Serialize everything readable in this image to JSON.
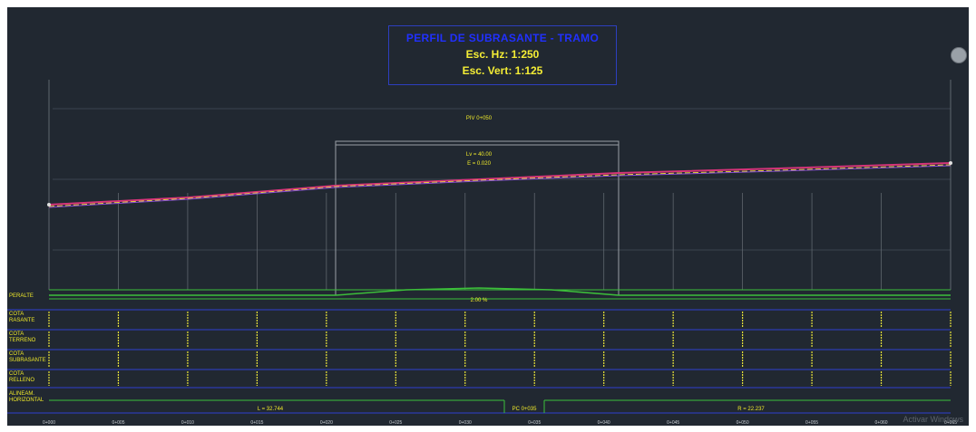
{
  "window": {
    "title_main": "PERFIL DE SUBRASANTE - TRAMO",
    "scale_horizontal": "Esc. Hz: 1:250",
    "scale_vertical": "Esc. Vert: 1:125"
  },
  "band_labels": {
    "peralte": "PERALTE",
    "cota_rasante": "COTA RASANTE",
    "cota_terreno": "COTA TERRENO",
    "cota_subrasante": "COTA SUBRASANTE",
    "cota_relleno": "COTA RELLENO",
    "alineamiento": "ALINEAM. HORIZONTAL"
  },
  "profile_annotations": {
    "pi_center": "PIV 0+050",
    "curve_text_1": "Lv = 40.00",
    "curve_text_2": "E = 0.020"
  },
  "stations": [
    "0+000",
    "0+005",
    "0+010",
    "0+015",
    "0+020",
    "0+025",
    "0+030",
    "0+035",
    "0+040",
    "0+045",
    "0+050",
    "0+055",
    "0+060",
    "0+065"
  ],
  "bottom_labels": {
    "left_segment": "L = 32.744",
    "right_segment": "R = 22.237",
    "center_text": "PC 0+035"
  },
  "peralte_center_value": "2.00 %",
  "watermark": "Activar Windows"
}
